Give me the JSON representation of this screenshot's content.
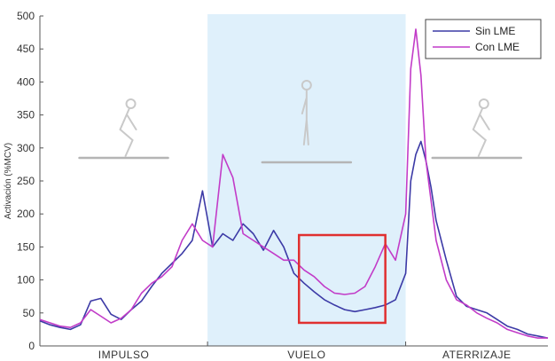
{
  "chart_data": {
    "type": "line",
    "title": "",
    "ylabel": "Activación (%MCV)",
    "xlabel": "",
    "ylim": [
      0,
      500
    ],
    "yticks": [
      0,
      50,
      100,
      150,
      200,
      250,
      300,
      350,
      400,
      450,
      500
    ],
    "xlim": [
      0,
      100
    ],
    "phases": [
      {
        "label": "IMPULSO",
        "start": 0,
        "end": 33
      },
      {
        "label": "VUELO",
        "start": 33,
        "end": 72
      },
      {
        "label": "ATERRIZAJE",
        "start": 72,
        "end": 100
      }
    ],
    "legend_position": "top-right",
    "highlight_box": {
      "x": [
        51,
        68
      ],
      "y": [
        35,
        168
      ],
      "color": "#e03030"
    },
    "series": [
      {
        "name": "Sin LME",
        "color": "#3c3aa6",
        "x": [
          0,
          2,
          4,
          6,
          8,
          10,
          12,
          14,
          16,
          18,
          20,
          22,
          24,
          26,
          28,
          30,
          32,
          34,
          36,
          38,
          40,
          42,
          44,
          46,
          48,
          50,
          52,
          54,
          56,
          58,
          60,
          62,
          64,
          66,
          68,
          70,
          72,
          73,
          74,
          75,
          76,
          77,
          78,
          80,
          82,
          84,
          86,
          88,
          90,
          92,
          94,
          96,
          98,
          100
        ],
        "y": [
          38,
          32,
          28,
          25,
          32,
          68,
          72,
          48,
          40,
          55,
          68,
          90,
          110,
          125,
          140,
          160,
          235,
          150,
          170,
          160,
          185,
          170,
          145,
          175,
          150,
          110,
          95,
          82,
          70,
          62,
          55,
          52,
          55,
          58,
          62,
          70,
          110,
          250,
          290,
          310,
          280,
          240,
          190,
          130,
          75,
          60,
          55,
          50,
          40,
          30,
          25,
          18,
          15,
          12
        ]
      },
      {
        "name": "Con LME",
        "color": "#c23cc8",
        "x": [
          0,
          2,
          4,
          6,
          8,
          10,
          12,
          14,
          16,
          18,
          20,
          22,
          24,
          26,
          28,
          30,
          32,
          34,
          36,
          38,
          40,
          42,
          44,
          46,
          48,
          50,
          52,
          54,
          56,
          58,
          60,
          62,
          64,
          66,
          68,
          70,
          72,
          73,
          74,
          75,
          76,
          77,
          78,
          80,
          82,
          84,
          86,
          88,
          90,
          92,
          94,
          96,
          98,
          100
        ],
        "y": [
          40,
          35,
          30,
          28,
          35,
          55,
          45,
          35,
          42,
          55,
          80,
          95,
          105,
          120,
          160,
          185,
          160,
          150,
          290,
          255,
          170,
          160,
          150,
          140,
          130,
          130,
          115,
          105,
          90,
          80,
          78,
          80,
          90,
          120,
          155,
          130,
          200,
          420,
          480,
          410,
          280,
          220,
          160,
          100,
          70,
          62,
          50,
          42,
          35,
          25,
          20,
          15,
          12,
          12
        ]
      }
    ]
  }
}
